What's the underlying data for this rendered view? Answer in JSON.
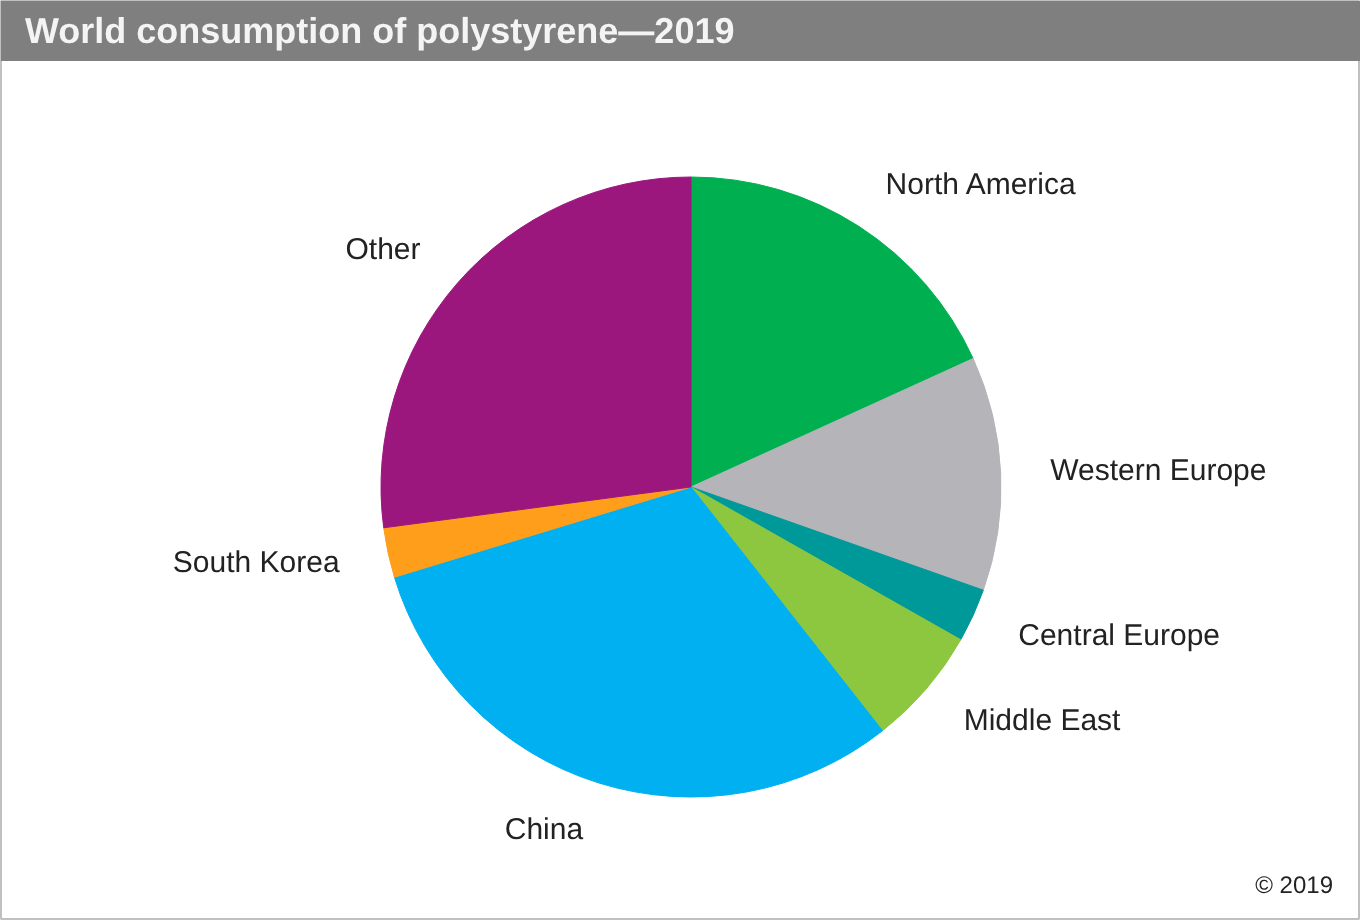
{
  "chart_data": {
    "type": "pie",
    "title": "World consumption of polystyrene—2019",
    "categories": [
      "North America",
      "Western Europe",
      "Central Europe",
      "Middle East",
      "China",
      "South Korea",
      "Other"
    ],
    "values": [
      18.2,
      12.2,
      2.8,
      6.2,
      30.9,
      2.6,
      27.1
    ],
    "colors": [
      "#00b050",
      "#b4b4b9",
      "#00999a",
      "#8dc63f",
      "#00b0f0",
      "#ff9e1b",
      "#9b177e"
    ],
    "annotations": [
      "© 2019"
    ]
  }
}
